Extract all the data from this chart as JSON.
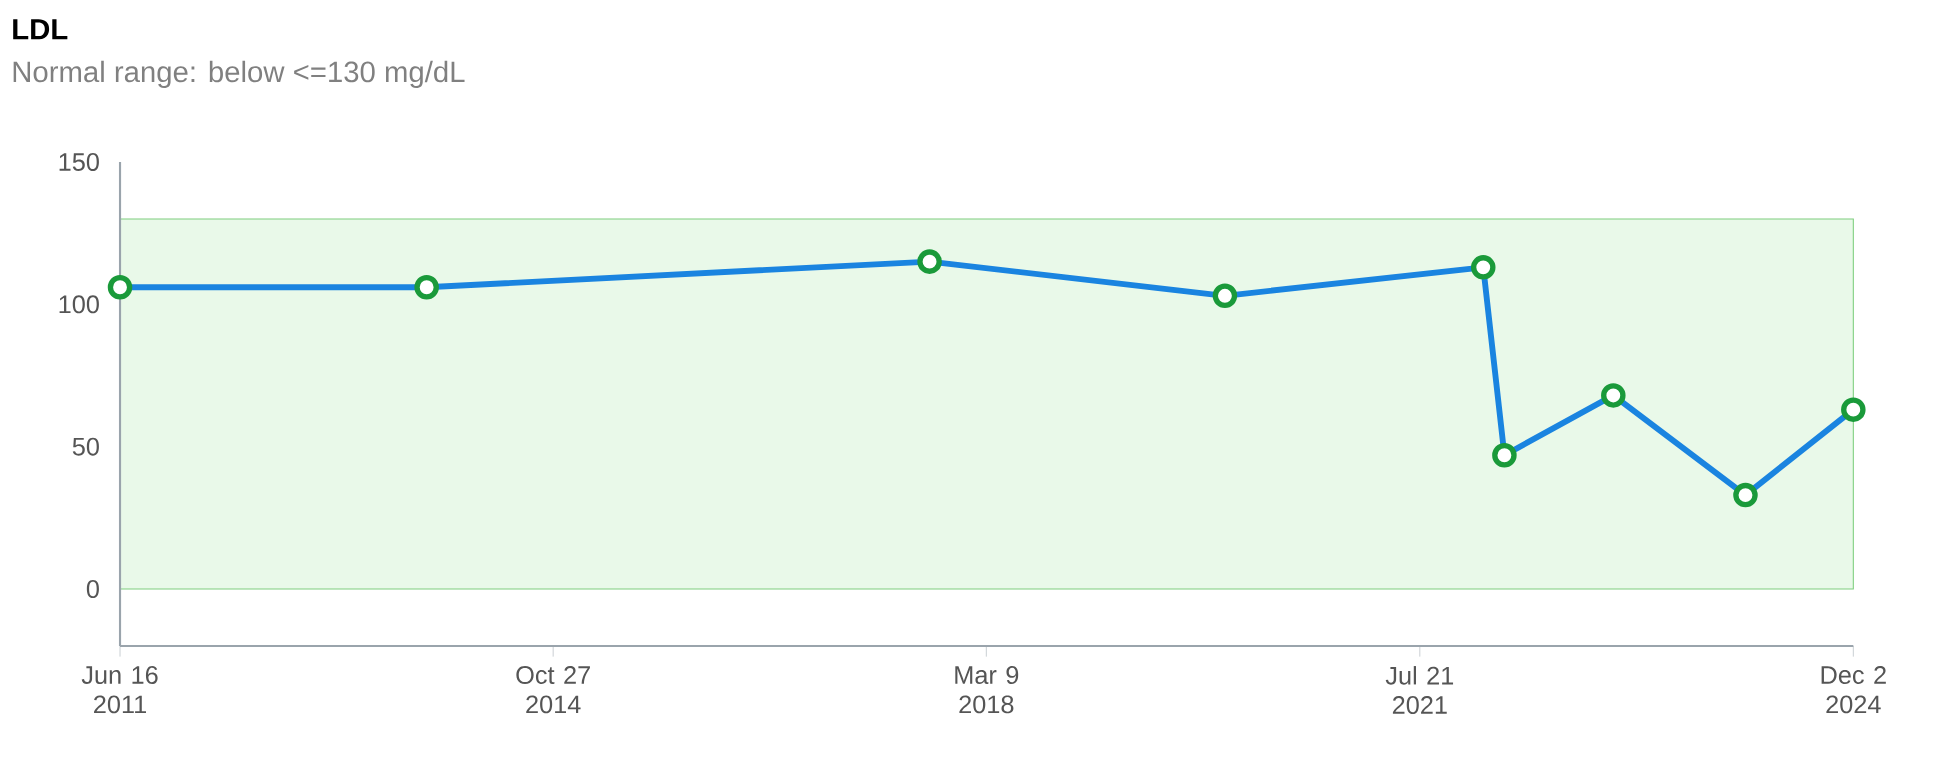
{
  "chart_data": {
    "type": "line",
    "title": "LDL",
    "subtitle": "Normal range: below <=130 mg/dL",
    "x": [
      "2011-06-16",
      "2013-11-02",
      "2017-09-29",
      "2020-01-15",
      "2022-01-17",
      "2022-03-18",
      "2023-01-21",
      "2024-01-31",
      "2024-12-02"
    ],
    "series": [
      {
        "color": "#1a84e0",
        "values": [
          106,
          106,
          115,
          103,
          113,
          47,
          68,
          33,
          63
        ]
      }
    ],
    "marker": "circle",
    "line_style": "solid",
    "xlim": [
      "2011-06-16",
      "2024-12-02"
    ],
    "xticks": [
      {
        "value": "2011-06-16",
        "label": "Jun 16 2011"
      },
      {
        "value": "2014-10-27",
        "label": "Oct 27 2014"
      },
      {
        "value": "2018-03-09",
        "label": "Mar 9 2018"
      },
      {
        "value": "2021-07-21",
        "label": "Jul 21 2021"
      },
      {
        "value": "2024-12-02",
        "label": "Dec 2 2024"
      }
    ],
    "ylim": [
      -20,
      150
    ],
    "yticks": [
      0,
      50,
      100,
      150
    ],
    "bands": [
      {
        "axis": "y",
        "from": 0,
        "to": 130,
        "color": "#e9f9e9"
      }
    ]
  }
}
